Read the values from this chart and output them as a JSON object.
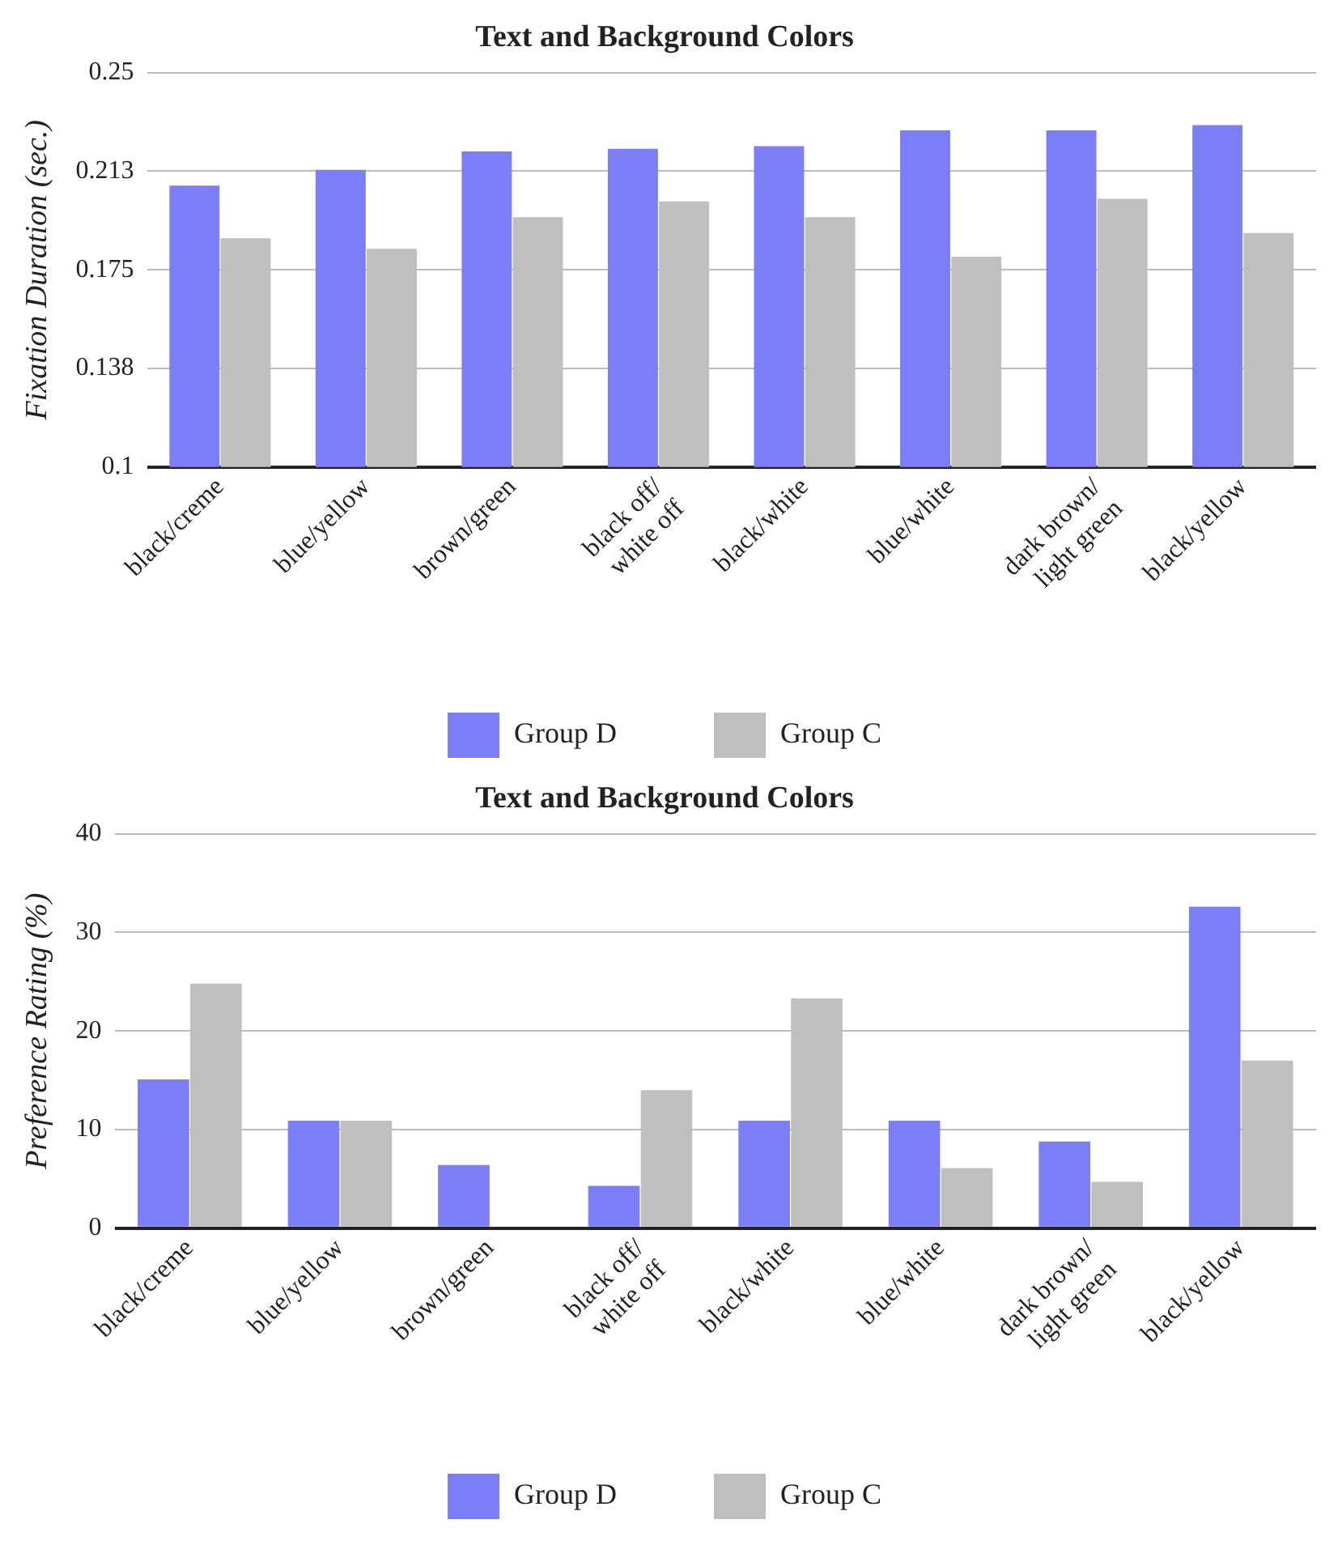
{
  "chart_data": [
    {
      "type": "bar",
      "title": "Text and Background Colors",
      "ylabel": "Fixation Duration (sec.)",
      "categories": [
        "black/creme",
        "blue/yellow",
        "brown/green",
        "black off/\nwhite off",
        "black/white",
        "blue/white",
        "dark brown/\nlight green",
        "black/yellow"
      ],
      "series": [
        {
          "name": "Group D",
          "color": "#7b7ef7",
          "values": [
            0.207,
            0.213,
            0.22,
            0.221,
            0.222,
            0.228,
            0.228,
            0.23
          ]
        },
        {
          "name": "Group C",
          "color": "#bfbfbf",
          "values": [
            0.187,
            0.183,
            0.195,
            0.201,
            0.195,
            0.18,
            0.202,
            0.189
          ]
        }
      ],
      "ylim": [
        0.1,
        0.25
      ],
      "yticks": [
        0.1,
        {
          "value": 0.1375,
          "label": "0.138"
        },
        0.175,
        {
          "value": 0.2125,
          "label": "0.213"
        },
        0.25
      ],
      "grid": "y",
      "legend": "bottom"
    },
    {
      "type": "bar",
      "title": "Text and Background Colors",
      "ylabel": "Preference Rating (%)",
      "categories": [
        "black/creme",
        "blue/yellow",
        "brown/green",
        "black off/\nwhite off",
        "black/white",
        "blue/white",
        "dark brown/\nlight green",
        "black/yellow"
      ],
      "series": [
        {
          "name": "Group D",
          "color": "#7b7ef7",
          "values": [
            15.1,
            10.9,
            6.4,
            4.3,
            10.9,
            10.9,
            8.8,
            32.6
          ]
        },
        {
          "name": "Group C",
          "color": "#bfbfbf",
          "values": [
            24.8,
            10.9,
            0,
            14.0,
            23.3,
            6.1,
            4.7,
            17.0
          ]
        }
      ],
      "ylim": [
        0,
        40
      ],
      "yticks": [
        0,
        10,
        20,
        30,
        40
      ],
      "grid": "y",
      "legend": "bottom"
    }
  ]
}
